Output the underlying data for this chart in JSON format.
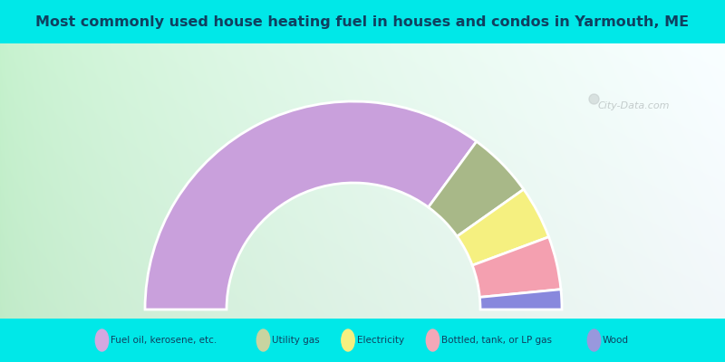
{
  "title": "Most commonly used house heating fuel in houses and condos in Yarmouth, ME",
  "categories": [
    "Fuel oil, kerosene, etc.",
    "Utility gas",
    "Electricity",
    "Bottled, tank, or LP gas",
    "Wood"
  ],
  "values": [
    68,
    10,
    8,
    8,
    3
  ],
  "colors": [
    "#c9a0dc",
    "#a8b888",
    "#f5f080",
    "#f4a0b0",
    "#8888dd"
  ],
  "legend_colors": [
    "#d4a8e0",
    "#c8d4a0",
    "#f5f080",
    "#f4a8b8",
    "#9898dd"
  ],
  "outer_bg": "#00e8e8",
  "title_color": "#104060",
  "legend_text_color": "#104060",
  "watermark": "City-Data.com"
}
